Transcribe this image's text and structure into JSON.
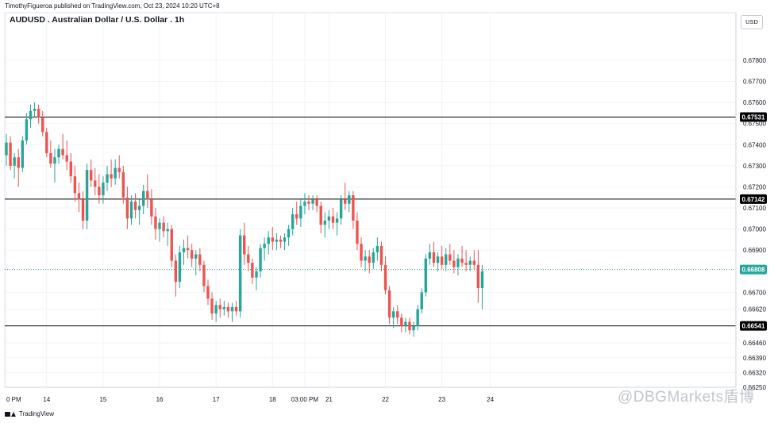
{
  "header": {
    "publisher": "TimothyFigueroa published on TradingView.com, Oct 23, 2024 10:20 UTC+8"
  },
  "symbol": {
    "title": "AUDUSD . Australian Dollar / U.S. Dollar . 1h"
  },
  "axis": {
    "currency": "USD"
  },
  "footer": {
    "brand": "TradingView"
  },
  "watermark": {
    "text": "@DBGMarkets盾博"
  },
  "colors": {
    "up": "#26a69a",
    "down": "#ef5350",
    "level_line": "#000000",
    "current_line": "#26a69a",
    "grid": "#f0f3fa"
  },
  "chart_data": {
    "type": "candlestick",
    "symbol": "AUDUSD",
    "timeframe": "1h",
    "ylim": [
      0.6625,
      0.67875
    ],
    "y_ticks": [
      "0.67800",
      "0.67700",
      "0.67600",
      "0.67500",
      "0.67400",
      "0.67300",
      "0.67200",
      "0.67100",
      "0.67000",
      "0.66900",
      "0.66700",
      "0.66620",
      "0.66460",
      "0.66390",
      "0.66320",
      "0.66250"
    ],
    "y_tick_values": [
      0.678,
      0.677,
      0.676,
      0.675,
      0.674,
      0.673,
      0.672,
      0.671,
      0.67,
      0.669,
      0.667,
      0.6662,
      0.6646,
      0.6639,
      0.6632,
      0.6625
    ],
    "x_ticks": [
      "0 PM",
      "14",
      "15",
      "16",
      "17",
      "18",
      "03:00 PM",
      "21",
      "22",
      "23",
      "24"
    ],
    "x_tick_index": [
      0,
      10,
      24,
      38,
      52,
      66,
      74,
      80,
      94,
      108,
      120
    ],
    "horizontal_levels": [
      {
        "value": 0.67531,
        "label": "0.67531",
        "style": "solid"
      },
      {
        "value": 0.67142,
        "label": "0.67142",
        "style": "solid"
      },
      {
        "value": 0.66541,
        "label": "0.66541",
        "style": "solid"
      }
    ],
    "current_price": {
      "value": 0.66808,
      "label": "0.66808"
    },
    "candles": [
      {
        "o": 0.6735,
        "h": 0.6745,
        "l": 0.673,
        "c": 0.6741
      },
      {
        "o": 0.6741,
        "h": 0.6744,
        "l": 0.6728,
        "c": 0.673
      },
      {
        "o": 0.673,
        "h": 0.6736,
        "l": 0.6724,
        "c": 0.6734
      },
      {
        "o": 0.6734,
        "h": 0.6738,
        "l": 0.672,
        "c": 0.6729
      },
      {
        "o": 0.6729,
        "h": 0.6744,
        "l": 0.6727,
        "c": 0.6742
      },
      {
        "o": 0.6742,
        "h": 0.6755,
        "l": 0.674,
        "c": 0.6752
      },
      {
        "o": 0.6752,
        "h": 0.6759,
        "l": 0.6748,
        "c": 0.6756
      },
      {
        "o": 0.6756,
        "h": 0.676,
        "l": 0.6753,
        "c": 0.6757
      },
      {
        "o": 0.6757,
        "h": 0.6759,
        "l": 0.675,
        "c": 0.6753
      },
      {
        "o": 0.6753,
        "h": 0.6756,
        "l": 0.6744,
        "c": 0.6746
      },
      {
        "o": 0.6746,
        "h": 0.6748,
        "l": 0.6734,
        "c": 0.6736
      },
      {
        "o": 0.6736,
        "h": 0.6742,
        "l": 0.6729,
        "c": 0.6731
      },
      {
        "o": 0.6731,
        "h": 0.6738,
        "l": 0.6722,
        "c": 0.6734
      },
      {
        "o": 0.6734,
        "h": 0.674,
        "l": 0.6731,
        "c": 0.6738
      },
      {
        "o": 0.6738,
        "h": 0.6745,
        "l": 0.6733,
        "c": 0.6735
      },
      {
        "o": 0.6735,
        "h": 0.6742,
        "l": 0.6728,
        "c": 0.6732
      },
      {
        "o": 0.6732,
        "h": 0.6736,
        "l": 0.6722,
        "c": 0.6725
      },
      {
        "o": 0.6725,
        "h": 0.673,
        "l": 0.6713,
        "c": 0.6717
      },
      {
        "o": 0.6717,
        "h": 0.6722,
        "l": 0.6708,
        "c": 0.6714
      },
      {
        "o": 0.6714,
        "h": 0.6718,
        "l": 0.67,
        "c": 0.6704
      },
      {
        "o": 0.6704,
        "h": 0.6731,
        "l": 0.67,
        "c": 0.6728
      },
      {
        "o": 0.6728,
        "h": 0.6733,
        "l": 0.672,
        "c": 0.6723
      },
      {
        "o": 0.6723,
        "h": 0.6729,
        "l": 0.6716,
        "c": 0.672
      },
      {
        "o": 0.672,
        "h": 0.6726,
        "l": 0.6712,
        "c": 0.6716
      },
      {
        "o": 0.6716,
        "h": 0.6725,
        "l": 0.6712,
        "c": 0.6722
      },
      {
        "o": 0.6722,
        "h": 0.673,
        "l": 0.6718,
        "c": 0.6726
      },
      {
        "o": 0.6726,
        "h": 0.6733,
        "l": 0.672,
        "c": 0.6724
      },
      {
        "o": 0.6724,
        "h": 0.6733,
        "l": 0.6721,
        "c": 0.6729
      },
      {
        "o": 0.6729,
        "h": 0.6735,
        "l": 0.6724,
        "c": 0.6727
      },
      {
        "o": 0.6727,
        "h": 0.673,
        "l": 0.6712,
        "c": 0.6715
      },
      {
        "o": 0.6715,
        "h": 0.672,
        "l": 0.67,
        "c": 0.6705
      },
      {
        "o": 0.6705,
        "h": 0.6716,
        "l": 0.6702,
        "c": 0.6713
      },
      {
        "o": 0.6713,
        "h": 0.6717,
        "l": 0.6705,
        "c": 0.6709
      },
      {
        "o": 0.6709,
        "h": 0.6714,
        "l": 0.6702,
        "c": 0.6711
      },
      {
        "o": 0.6711,
        "h": 0.6721,
        "l": 0.6707,
        "c": 0.6718
      },
      {
        "o": 0.6718,
        "h": 0.6726,
        "l": 0.671,
        "c": 0.6714
      },
      {
        "o": 0.6714,
        "h": 0.6719,
        "l": 0.6702,
        "c": 0.6706
      },
      {
        "o": 0.6706,
        "h": 0.671,
        "l": 0.6695,
        "c": 0.67
      },
      {
        "o": 0.67,
        "h": 0.6705,
        "l": 0.6694,
        "c": 0.6703
      },
      {
        "o": 0.6703,
        "h": 0.6706,
        "l": 0.6696,
        "c": 0.6699
      },
      {
        "o": 0.6699,
        "h": 0.6703,
        "l": 0.6692,
        "c": 0.67
      },
      {
        "o": 0.67,
        "h": 0.6702,
        "l": 0.6682,
        "c": 0.6685
      },
      {
        "o": 0.6685,
        "h": 0.6688,
        "l": 0.6668,
        "c": 0.6675
      },
      {
        "o": 0.6675,
        "h": 0.6692,
        "l": 0.6672,
        "c": 0.6689
      },
      {
        "o": 0.6689,
        "h": 0.6695,
        "l": 0.6683,
        "c": 0.6691
      },
      {
        "o": 0.6691,
        "h": 0.6697,
        "l": 0.6686,
        "c": 0.669
      },
      {
        "o": 0.669,
        "h": 0.6693,
        "l": 0.6682,
        "c": 0.6686
      },
      {
        "o": 0.6686,
        "h": 0.669,
        "l": 0.6678,
        "c": 0.6688
      },
      {
        "o": 0.6688,
        "h": 0.6691,
        "l": 0.668,
        "c": 0.6683
      },
      {
        "o": 0.6683,
        "h": 0.6685,
        "l": 0.667,
        "c": 0.6673
      },
      {
        "o": 0.6673,
        "h": 0.6676,
        "l": 0.6664,
        "c": 0.6667
      },
      {
        "o": 0.6667,
        "h": 0.667,
        "l": 0.6657,
        "c": 0.666
      },
      {
        "o": 0.666,
        "h": 0.6666,
        "l": 0.6656,
        "c": 0.6664
      },
      {
        "o": 0.6664,
        "h": 0.6667,
        "l": 0.6658,
        "c": 0.6662
      },
      {
        "o": 0.6662,
        "h": 0.6666,
        "l": 0.6659,
        "c": 0.6663
      },
      {
        "o": 0.6663,
        "h": 0.6665,
        "l": 0.6658,
        "c": 0.6661
      },
      {
        "o": 0.6661,
        "h": 0.6665,
        "l": 0.6656,
        "c": 0.6663
      },
      {
        "o": 0.6663,
        "h": 0.6666,
        "l": 0.6659,
        "c": 0.6661
      },
      {
        "o": 0.6661,
        "h": 0.67,
        "l": 0.6658,
        "c": 0.6697
      },
      {
        "o": 0.6697,
        "h": 0.6703,
        "l": 0.6683,
        "c": 0.6688
      },
      {
        "o": 0.6688,
        "h": 0.6692,
        "l": 0.668,
        "c": 0.6684
      },
      {
        "o": 0.6684,
        "h": 0.6686,
        "l": 0.6674,
        "c": 0.6677
      },
      {
        "o": 0.6677,
        "h": 0.6682,
        "l": 0.6671,
        "c": 0.668
      },
      {
        "o": 0.668,
        "h": 0.6693,
        "l": 0.6677,
        "c": 0.6691
      },
      {
        "o": 0.6691,
        "h": 0.6696,
        "l": 0.6685,
        "c": 0.6693
      },
      {
        "o": 0.6693,
        "h": 0.6699,
        "l": 0.6688,
        "c": 0.6696
      },
      {
        "o": 0.6696,
        "h": 0.6701,
        "l": 0.669,
        "c": 0.6694
      },
      {
        "o": 0.6694,
        "h": 0.6698,
        "l": 0.669,
        "c": 0.6695
      },
      {
        "o": 0.6695,
        "h": 0.6697,
        "l": 0.6691,
        "c": 0.6694
      },
      {
        "o": 0.6694,
        "h": 0.6698,
        "l": 0.669,
        "c": 0.6696
      },
      {
        "o": 0.6696,
        "h": 0.6702,
        "l": 0.6692,
        "c": 0.67
      },
      {
        "o": 0.67,
        "h": 0.671,
        "l": 0.6697,
        "c": 0.6707
      },
      {
        "o": 0.6707,
        "h": 0.6713,
        "l": 0.6702,
        "c": 0.6705
      },
      {
        "o": 0.6705,
        "h": 0.6714,
        "l": 0.6701,
        "c": 0.6711
      },
      {
        "o": 0.6711,
        "h": 0.6717,
        "l": 0.6707,
        "c": 0.6713
      },
      {
        "o": 0.6713,
        "h": 0.6716,
        "l": 0.6709,
        "c": 0.6712
      },
      {
        "o": 0.6712,
        "h": 0.6716,
        "l": 0.6709,
        "c": 0.6714
      },
      {
        "o": 0.6714,
        "h": 0.6716,
        "l": 0.6708,
        "c": 0.6711
      },
      {
        "o": 0.6711,
        "h": 0.6713,
        "l": 0.6698,
        "c": 0.6702
      },
      {
        "o": 0.6702,
        "h": 0.6708,
        "l": 0.6696,
        "c": 0.6704
      },
      {
        "o": 0.6704,
        "h": 0.6709,
        "l": 0.67,
        "c": 0.6706
      },
      {
        "o": 0.6706,
        "h": 0.671,
        "l": 0.67,
        "c": 0.6703
      },
      {
        "o": 0.6703,
        "h": 0.6708,
        "l": 0.6697,
        "c": 0.6705
      },
      {
        "o": 0.6705,
        "h": 0.6716,
        "l": 0.6702,
        "c": 0.6714
      },
      {
        "o": 0.6714,
        "h": 0.6722,
        "l": 0.6709,
        "c": 0.6712
      },
      {
        "o": 0.6712,
        "h": 0.6718,
        "l": 0.6708,
        "c": 0.6716
      },
      {
        "o": 0.6716,
        "h": 0.6718,
        "l": 0.67,
        "c": 0.6704
      },
      {
        "o": 0.6704,
        "h": 0.6708,
        "l": 0.669,
        "c": 0.6693
      },
      {
        "o": 0.6693,
        "h": 0.6696,
        "l": 0.6682,
        "c": 0.6685
      },
      {
        "o": 0.6685,
        "h": 0.669,
        "l": 0.668,
        "c": 0.6687
      },
      {
        "o": 0.6687,
        "h": 0.669,
        "l": 0.6679,
        "c": 0.6684
      },
      {
        "o": 0.6684,
        "h": 0.6691,
        "l": 0.6681,
        "c": 0.6689
      },
      {
        "o": 0.6689,
        "h": 0.6696,
        "l": 0.6685,
        "c": 0.6692
      },
      {
        "o": 0.6692,
        "h": 0.6694,
        "l": 0.668,
        "c": 0.6683
      },
      {
        "o": 0.6683,
        "h": 0.6687,
        "l": 0.6669,
        "c": 0.6671
      },
      {
        "o": 0.6671,
        "h": 0.6673,
        "l": 0.6655,
        "c": 0.6658
      },
      {
        "o": 0.6658,
        "h": 0.6663,
        "l": 0.6653,
        "c": 0.6661
      },
      {
        "o": 0.6661,
        "h": 0.6664,
        "l": 0.6655,
        "c": 0.6658
      },
      {
        "o": 0.6658,
        "h": 0.666,
        "l": 0.6651,
        "c": 0.6654
      },
      {
        "o": 0.6654,
        "h": 0.6658,
        "l": 0.6651,
        "c": 0.6656
      },
      {
        "o": 0.6656,
        "h": 0.6658,
        "l": 0.665,
        "c": 0.6652
      },
      {
        "o": 0.6652,
        "h": 0.6656,
        "l": 0.6649,
        "c": 0.6654
      },
      {
        "o": 0.6654,
        "h": 0.6664,
        "l": 0.6652,
        "c": 0.6662
      },
      {
        "o": 0.6662,
        "h": 0.6672,
        "l": 0.666,
        "c": 0.667
      },
      {
        "o": 0.667,
        "h": 0.6688,
        "l": 0.6668,
        "c": 0.6686
      },
      {
        "o": 0.6686,
        "h": 0.6693,
        "l": 0.6683,
        "c": 0.6689
      },
      {
        "o": 0.6689,
        "h": 0.6694,
        "l": 0.6682,
        "c": 0.6684
      },
      {
        "o": 0.6684,
        "h": 0.6689,
        "l": 0.668,
        "c": 0.6687
      },
      {
        "o": 0.6687,
        "h": 0.6692,
        "l": 0.6681,
        "c": 0.6683
      },
      {
        "o": 0.6683,
        "h": 0.6691,
        "l": 0.668,
        "c": 0.6688
      },
      {
        "o": 0.6688,
        "h": 0.6693,
        "l": 0.6683,
        "c": 0.6685
      },
      {
        "o": 0.6685,
        "h": 0.669,
        "l": 0.6679,
        "c": 0.6682
      },
      {
        "o": 0.6682,
        "h": 0.6688,
        "l": 0.6678,
        "c": 0.6686
      },
      {
        "o": 0.6686,
        "h": 0.6692,
        "l": 0.6682,
        "c": 0.6684
      },
      {
        "o": 0.6684,
        "h": 0.669,
        "l": 0.668,
        "c": 0.6683
      },
      {
        "o": 0.6683,
        "h": 0.6687,
        "l": 0.668,
        "c": 0.6685
      },
      {
        "o": 0.6685,
        "h": 0.669,
        "l": 0.6681,
        "c": 0.6683
      },
      {
        "o": 0.6683,
        "h": 0.669,
        "l": 0.6665,
        "c": 0.6672
      },
      {
        "o": 0.6672,
        "h": 0.6683,
        "l": 0.6662,
        "c": 0.668
      }
    ]
  }
}
